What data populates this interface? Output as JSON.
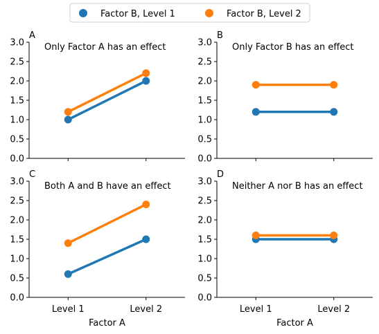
{
  "legend": {
    "placement": "top-center",
    "items": [
      {
        "label": "Factor B, Level 1",
        "color": "#1f77b4"
      },
      {
        "label": "Factor B, Level 2",
        "color": "#ff7f0e"
      }
    ]
  },
  "chart_data": [
    {
      "panel": "A",
      "type": "line",
      "title": "Only Factor A has an effect",
      "categories": [
        "Level 1",
        "Level 2"
      ],
      "series": [
        {
          "name": "Factor B, Level 1",
          "values": [
            1.0,
            2.0
          ],
          "color": "#1f77b4"
        },
        {
          "name": "Factor B, Level 2",
          "values": [
            1.2,
            2.2
          ],
          "color": "#ff7f0e"
        }
      ],
      "ylim": [
        0,
        3
      ],
      "yticks": [
        "0.0",
        "0.5",
        "1.0",
        "1.5",
        "2.0",
        "2.5",
        "3.0"
      ],
      "xlabel": "",
      "show_xticklabels": false,
      "grid": false
    },
    {
      "panel": "B",
      "type": "line",
      "title": "Only Factor B has an effect",
      "categories": [
        "Level 1",
        "Level 2"
      ],
      "series": [
        {
          "name": "Factor B, Level 1",
          "values": [
            1.2,
            1.2
          ],
          "color": "#1f77b4"
        },
        {
          "name": "Factor B, Level 2",
          "values": [
            1.9,
            1.9
          ],
          "color": "#ff7f0e"
        }
      ],
      "ylim": [
        0,
        3
      ],
      "yticks": [
        "0.0",
        "0.5",
        "1.0",
        "1.5",
        "2.0",
        "2.5",
        "3.0"
      ],
      "xlabel": "",
      "show_xticklabels": false,
      "grid": false
    },
    {
      "panel": "C",
      "type": "line",
      "title": "Both A and B have an effect",
      "categories": [
        "Level 1",
        "Level 2"
      ],
      "series": [
        {
          "name": "Factor B, Level 1",
          "values": [
            0.6,
            1.5
          ],
          "color": "#1f77b4"
        },
        {
          "name": "Factor B, Level 2",
          "values": [
            1.4,
            2.4
          ],
          "color": "#ff7f0e"
        }
      ],
      "ylim": [
        0,
        3
      ],
      "yticks": [
        "0.0",
        "0.5",
        "1.0",
        "1.5",
        "2.0",
        "2.5",
        "3.0"
      ],
      "xlabel": "Factor A",
      "show_xticklabels": true,
      "grid": false
    },
    {
      "panel": "D",
      "type": "line",
      "title": "Neither A nor B has an effect",
      "categories": [
        "Level 1",
        "Level 2"
      ],
      "series": [
        {
          "name": "Factor B, Level 1",
          "values": [
            1.5,
            1.5
          ],
          "color": "#1f77b4"
        },
        {
          "name": "Factor B, Level 2",
          "values": [
            1.6,
            1.6
          ],
          "color": "#ff7f0e"
        }
      ],
      "ylim": [
        0,
        3
      ],
      "yticks": [
        "0.0",
        "0.5",
        "1.0",
        "1.5",
        "2.0",
        "2.5",
        "3.0"
      ],
      "xlabel": "Factor A",
      "show_xticklabels": true,
      "grid": false
    }
  ]
}
